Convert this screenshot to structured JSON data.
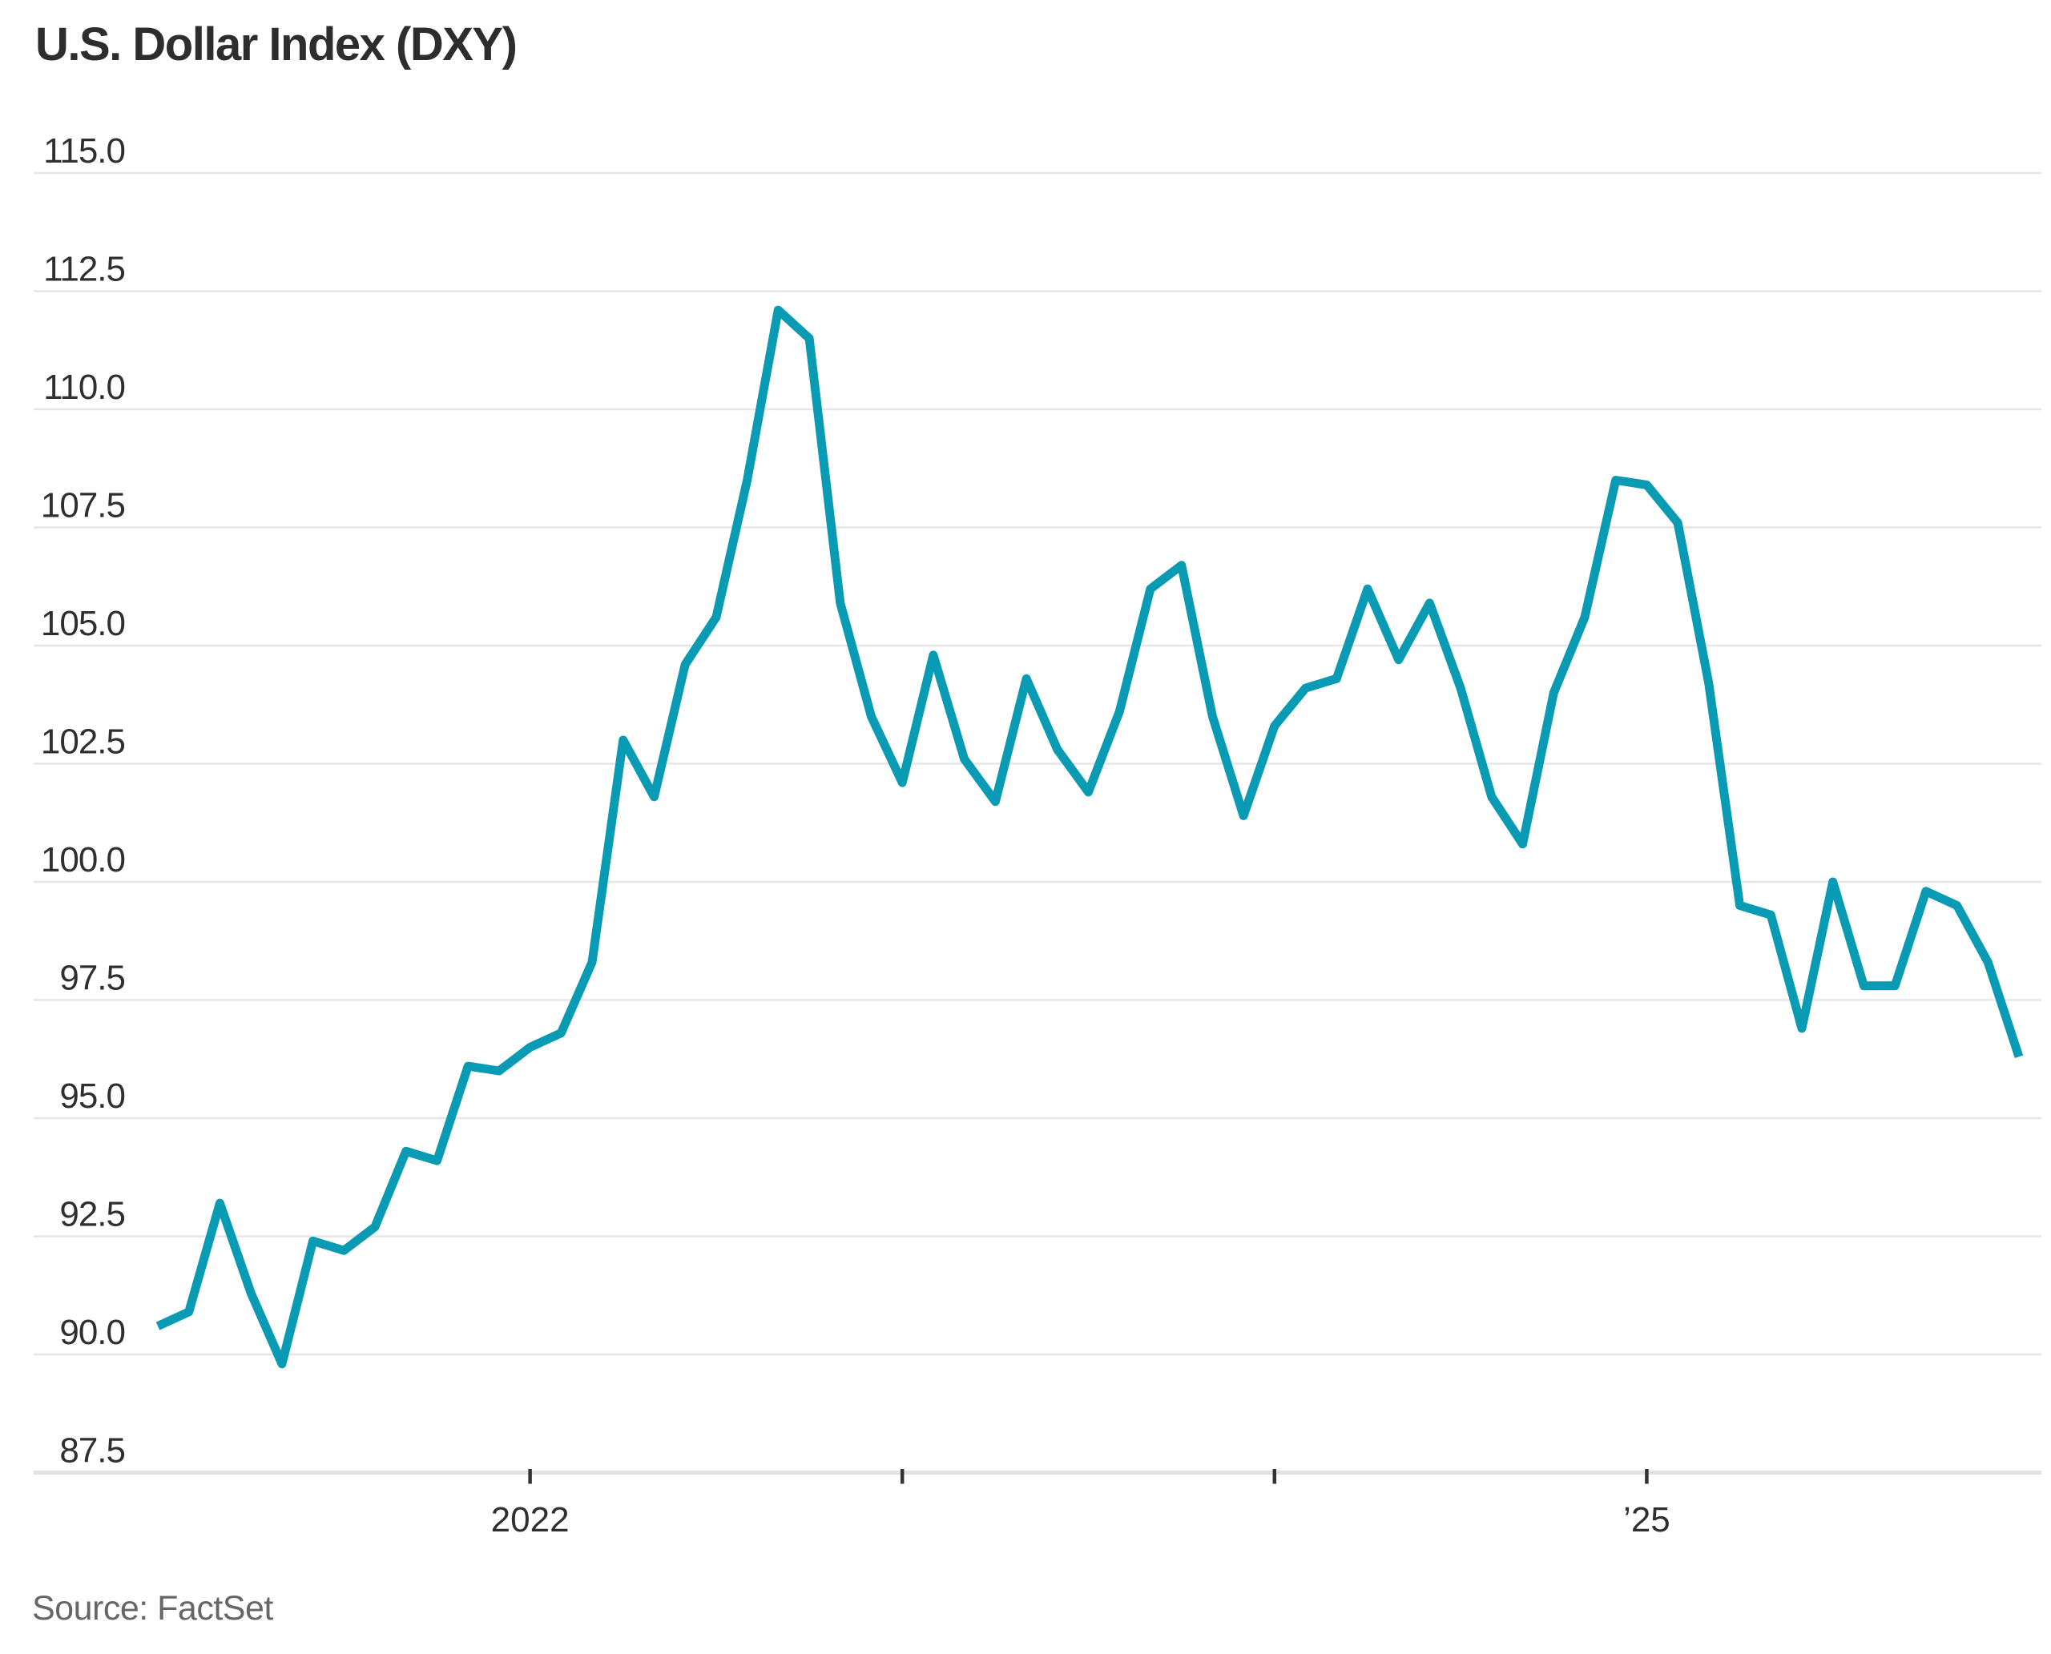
{
  "header": {
    "title": "U.S. Dollar Index (DXY)"
  },
  "footer": {
    "source": "Source: FactSet"
  },
  "colors": {
    "line": "#0a9bb4",
    "gridline": "#e6e6e6",
    "axis_line": "#e2e2e2",
    "tick_mark": "#333333",
    "tick_label": "#2f2f2f",
    "title": "#2d2d2d",
    "source": "#666666",
    "background": "#ffffff"
  },
  "chart_data": {
    "type": "line",
    "title": "U.S. Dollar Index (DXY)",
    "source": "Source: FactSet",
    "xlabel": "",
    "ylabel": "",
    "ylim": [
      87.5,
      115.0
    ],
    "grid": "horizontal",
    "legend": "none",
    "y_ticks": [
      115.0,
      112.5,
      110.0,
      107.5,
      105.0,
      102.5,
      100.0,
      97.5,
      95.0,
      92.5,
      90.0,
      87.5
    ],
    "x_ticks": [
      {
        "month_index": 12,
        "label": "2022"
      },
      {
        "month_index": 24,
        "label": ""
      },
      {
        "month_index": 36,
        "label": ""
      },
      {
        "month_index": 48,
        "label": "’25"
      }
    ],
    "x": [
      "2021-01",
      "2021-02",
      "2021-03",
      "2021-04",
      "2021-05",
      "2021-06",
      "2021-07",
      "2021-08",
      "2021-09",
      "2021-10",
      "2021-11",
      "2021-12",
      "2022-01",
      "2022-02",
      "2022-03",
      "2022-04",
      "2022-05",
      "2022-06",
      "2022-07",
      "2022-08",
      "2022-09",
      "2022-10",
      "2022-11",
      "2022-12",
      "2023-01",
      "2023-02",
      "2023-03",
      "2023-04",
      "2023-05",
      "2023-06",
      "2023-07",
      "2023-08",
      "2023-09",
      "2023-10",
      "2023-11",
      "2023-12",
      "2024-01",
      "2024-02",
      "2024-03",
      "2024-04",
      "2024-05",
      "2024-06",
      "2024-07",
      "2024-08",
      "2024-09",
      "2024-10",
      "2024-11",
      "2024-12",
      "2025-01",
      "2025-02",
      "2025-03",
      "2025-04",
      "2025-05",
      "2025-06",
      "2025-07",
      "2025-08",
      "2025-09",
      "2025-10",
      "2025-11",
      "2025-12",
      "2026-01"
    ],
    "values": [
      90.6,
      90.9,
      93.2,
      91.3,
      89.8,
      92.4,
      92.2,
      92.7,
      94.3,
      94.1,
      96.1,
      96.0,
      96.5,
      96.8,
      98.3,
      103.0,
      101.8,
      104.6,
      105.6,
      108.5,
      112.1,
      111.5,
      105.9,
      103.5,
      102.1,
      104.8,
      102.6,
      101.7,
      104.3,
      102.8,
      101.9,
      103.6,
      106.2,
      106.7,
      103.5,
      101.4,
      103.3,
      104.1,
      104.3,
      106.2,
      104.7,
      105.9,
      104.1,
      101.8,
      100.8,
      104.0,
      105.6,
      108.5,
      108.4,
      107.6,
      104.2,
      99.5,
      99.3,
      96.9,
      100.0,
      97.8,
      97.8,
      99.8,
      99.5,
      98.3,
      96.3
    ]
  }
}
